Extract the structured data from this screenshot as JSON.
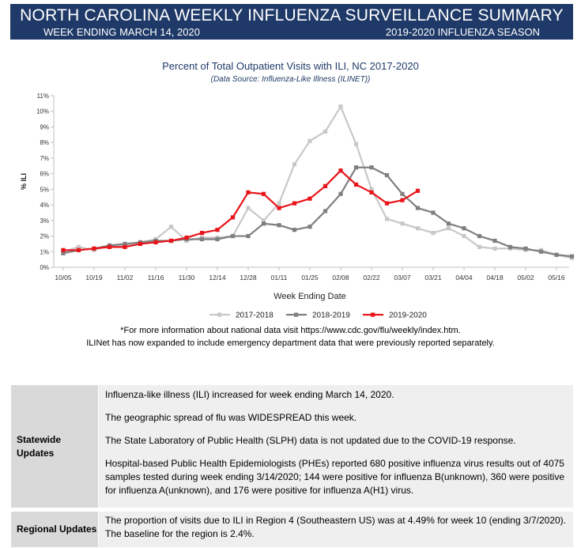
{
  "header": {
    "title": "NORTH CAROLINA WEEKLY INFLUENZA SURVEILLANCE SUMMARY",
    "week_ending": "WEEK ENDING MARCH 14, 2020",
    "season": "2019-2020 INFLUENZA SEASON"
  },
  "chart_data": {
    "type": "line",
    "title": "Percent of Total Outpatient Visits with ILI, NC 2017-2020",
    "subtitle": "(Data Source: Influenza-Like Illness (ILINET))",
    "xlabel": "Week Ending Date",
    "ylabel": "% ILI",
    "ylim": [
      0,
      11
    ],
    "yticks": [
      "0%",
      "1%",
      "2%",
      "3%",
      "4%",
      "5%",
      "6%",
      "7%",
      "8%",
      "9%",
      "10%",
      "11%"
    ],
    "x_tick_labels": [
      "10/05",
      "10/19",
      "11/02",
      "11/16",
      "11/30",
      "12/14",
      "12/28",
      "01/11",
      "01/25",
      "02/08",
      "02/22",
      "03/07",
      "03/21",
      "04/04",
      "04/18",
      "05/02",
      "05/16"
    ],
    "legend_position": "bottom",
    "grid": false,
    "series": [
      {
        "name": "2017-2018",
        "color": "#c8c8c8",
        "values": [
          1.0,
          1.3,
          1.1,
          1.4,
          1.4,
          1.6,
          1.8,
          2.6,
          1.7,
          1.9,
          1.9,
          2.0,
          3.8,
          3.0,
          4.1,
          6.6,
          8.1,
          8.7,
          10.3,
          7.9,
          5.0,
          3.1,
          2.8,
          2.5,
          2.2,
          2.5,
          2.0,
          1.3,
          1.2,
          1.2,
          1.1,
          1.1,
          0.8,
          0.6
        ]
      },
      {
        "name": "2018-2019",
        "color": "#7f7f7f",
        "values": [
          0.9,
          1.1,
          1.2,
          1.4,
          1.5,
          1.6,
          1.7,
          1.7,
          1.8,
          1.8,
          1.8,
          2.0,
          2.0,
          2.8,
          2.7,
          2.4,
          2.6,
          3.6,
          4.7,
          6.4,
          6.4,
          5.9,
          4.7,
          3.8,
          3.5,
          2.8,
          2.5,
          2.0,
          1.7,
          1.3,
          1.2,
          1.0,
          0.8,
          0.7
        ]
      },
      {
        "name": "2019-2020",
        "color": "#e8141a",
        "values": [
          1.1,
          1.1,
          1.2,
          1.3,
          1.3,
          1.5,
          1.6,
          1.7,
          1.9,
          2.2,
          2.4,
          3.2,
          4.8,
          4.7,
          3.8,
          4.1,
          4.4,
          5.2,
          6.2,
          5.3,
          4.8,
          4.1,
          4.3,
          4.9
        ]
      }
    ]
  },
  "notes": {
    "line1": "*For more information about national data visit https://www.cdc.gov/flu/weekly/index.htm.",
    "line2": "ILINet has now expanded to include emergency department data that were previously reported separately."
  },
  "table": {
    "statewide": {
      "header": "Statewide Updates",
      "p1": "Influenza-like illness (ILI) increased for week ending March 14, 2020.",
      "p2": "The geographic spread of flu was WIDESPREAD this week.",
      "p3": "The State Laboratory of Public Health (SLPH) data is not updated due to the COVID-19 response.",
      "p4": "Hospital-based Public Health Epidemiologists (PHEs) reported 680 positive influenza virus results out of 4075 samples tested during week ending 3/14/2020; 144 were positive for influenza B(unknown), 360 were positive for influenza A(unknown), and 176 were positive for influenza A(H1) virus."
    },
    "regional": {
      "header": "Regional Updates",
      "p1": "The proportion of visits due to ILI in Region 4 (Southeastern US) was at 4.49% for week 10 (ending 3/7/2020). The baseline for the region is 2.4%."
    }
  }
}
